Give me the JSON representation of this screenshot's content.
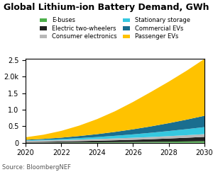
{
  "chart_data": {
    "type": "area",
    "stacked": true,
    "title": "Global Lithium-ion Battery Demand, GWh",
    "annotations": [
      "Source: BloombergNEF"
    ],
    "x": [
      2020,
      2021,
      2022,
      2023,
      2024,
      2025,
      2026,
      2027,
      2028,
      2029,
      2030
    ],
    "series": [
      {
        "name": "E-buses",
        "color": "#4daf4a",
        "values": [
          0.004,
          0.006,
          0.008,
          0.011,
          0.014,
          0.018,
          0.022,
          0.027,
          0.033,
          0.04,
          0.048
        ]
      },
      {
        "name": "Electric two-wheelers",
        "color": "#222222",
        "values": [
          0.018,
          0.023,
          0.03,
          0.038,
          0.047,
          0.057,
          0.068,
          0.081,
          0.096,
          0.112,
          0.13
        ]
      },
      {
        "name": "Consumer electronics",
        "color": "#b8b8b8",
        "values": [
          0.038,
          0.041,
          0.044,
          0.048,
          0.052,
          0.056,
          0.061,
          0.066,
          0.071,
          0.077,
          0.083
        ]
      },
      {
        "name": "Stationary storage",
        "color": "#35c8e0",
        "values": [
          0.013,
          0.02,
          0.03,
          0.044,
          0.06,
          0.08,
          0.103,
          0.128,
          0.155,
          0.183,
          0.213
        ]
      },
      {
        "name": "Commercial EVs",
        "color": "#1a6e8f",
        "values": [
          0.018,
          0.028,
          0.043,
          0.063,
          0.088,
          0.118,
          0.153,
          0.193,
          0.238,
          0.288,
          0.343
        ]
      },
      {
        "name": "Passenger EVs",
        "color": "#ffc200",
        "values": [
          0.075,
          0.125,
          0.205,
          0.315,
          0.455,
          0.625,
          0.825,
          1.04,
          1.255,
          1.48,
          1.72
        ]
      }
    ],
    "xlim": [
      2020,
      2030
    ],
    "xticks": [
      2020,
      2022,
      2024,
      2026,
      2028,
      2030
    ],
    "ylim": [
      0,
      2.55
    ],
    "yticks": [
      0,
      0.5,
      {
        "value": 1.0,
        "label": "1.0"
      },
      1.5,
      {
        "value": 2.0,
        "label": "2.0k"
      },
      2.5
    ],
    "legend": "upper center"
  }
}
